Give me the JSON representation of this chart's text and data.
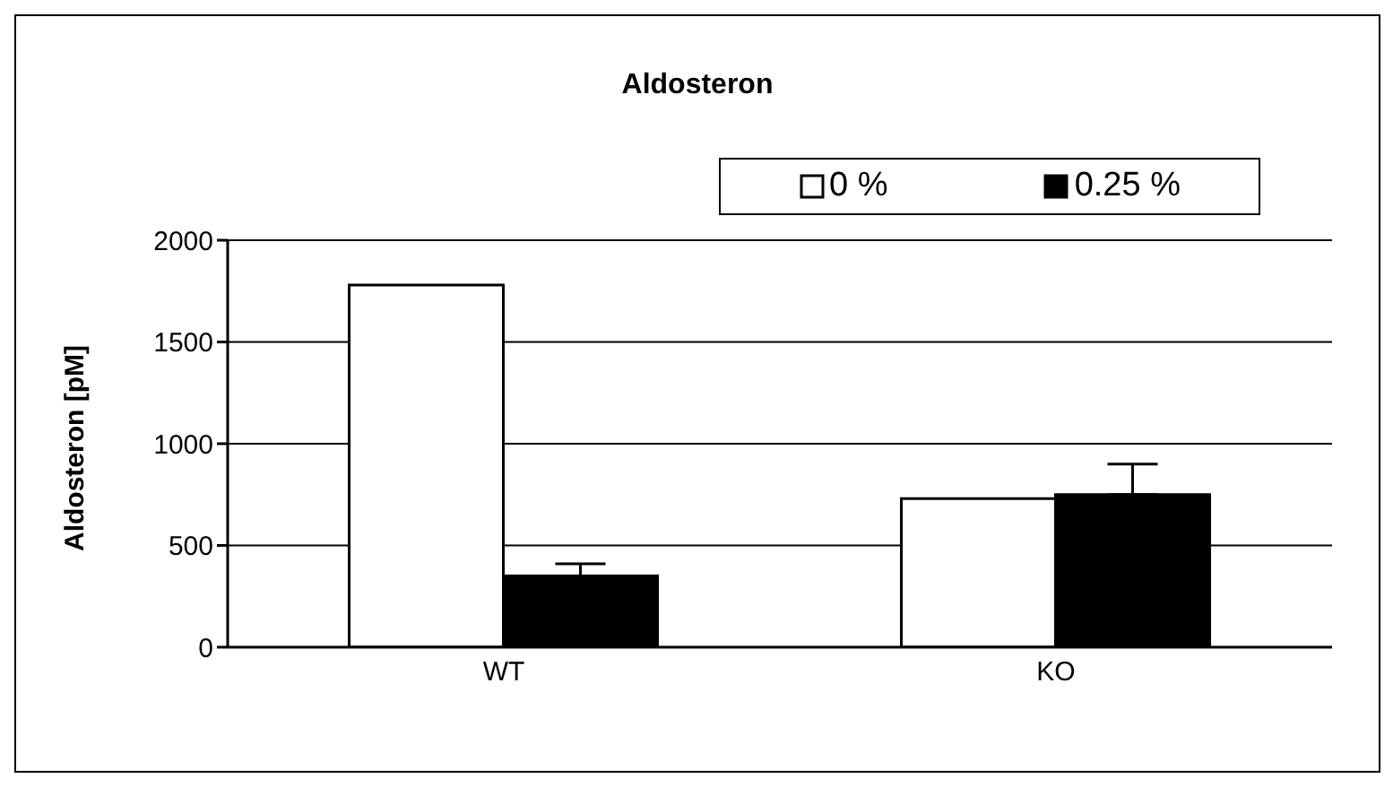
{
  "chart_data": {
    "type": "bar",
    "title": "Aldosteron",
    "ylabel": "Aldosteron [pM]",
    "categories": [
      "WT",
      "KO"
    ],
    "series": [
      {
        "name": "0 %",
        "color": "#ffffff",
        "values": [
          1780,
          730
        ]
      },
      {
        "name": "0.25 %",
        "color": "#000000",
        "values": [
          350,
          750
        ],
        "errors": [
          [
            350,
            410
          ],
          [
            750,
            900
          ]
        ]
      }
    ],
    "ylim": [
      0,
      2000
    ],
    "yticks": [
      0,
      500,
      1000,
      1500,
      2000
    ],
    "grid": "y",
    "legend": "top right"
  }
}
